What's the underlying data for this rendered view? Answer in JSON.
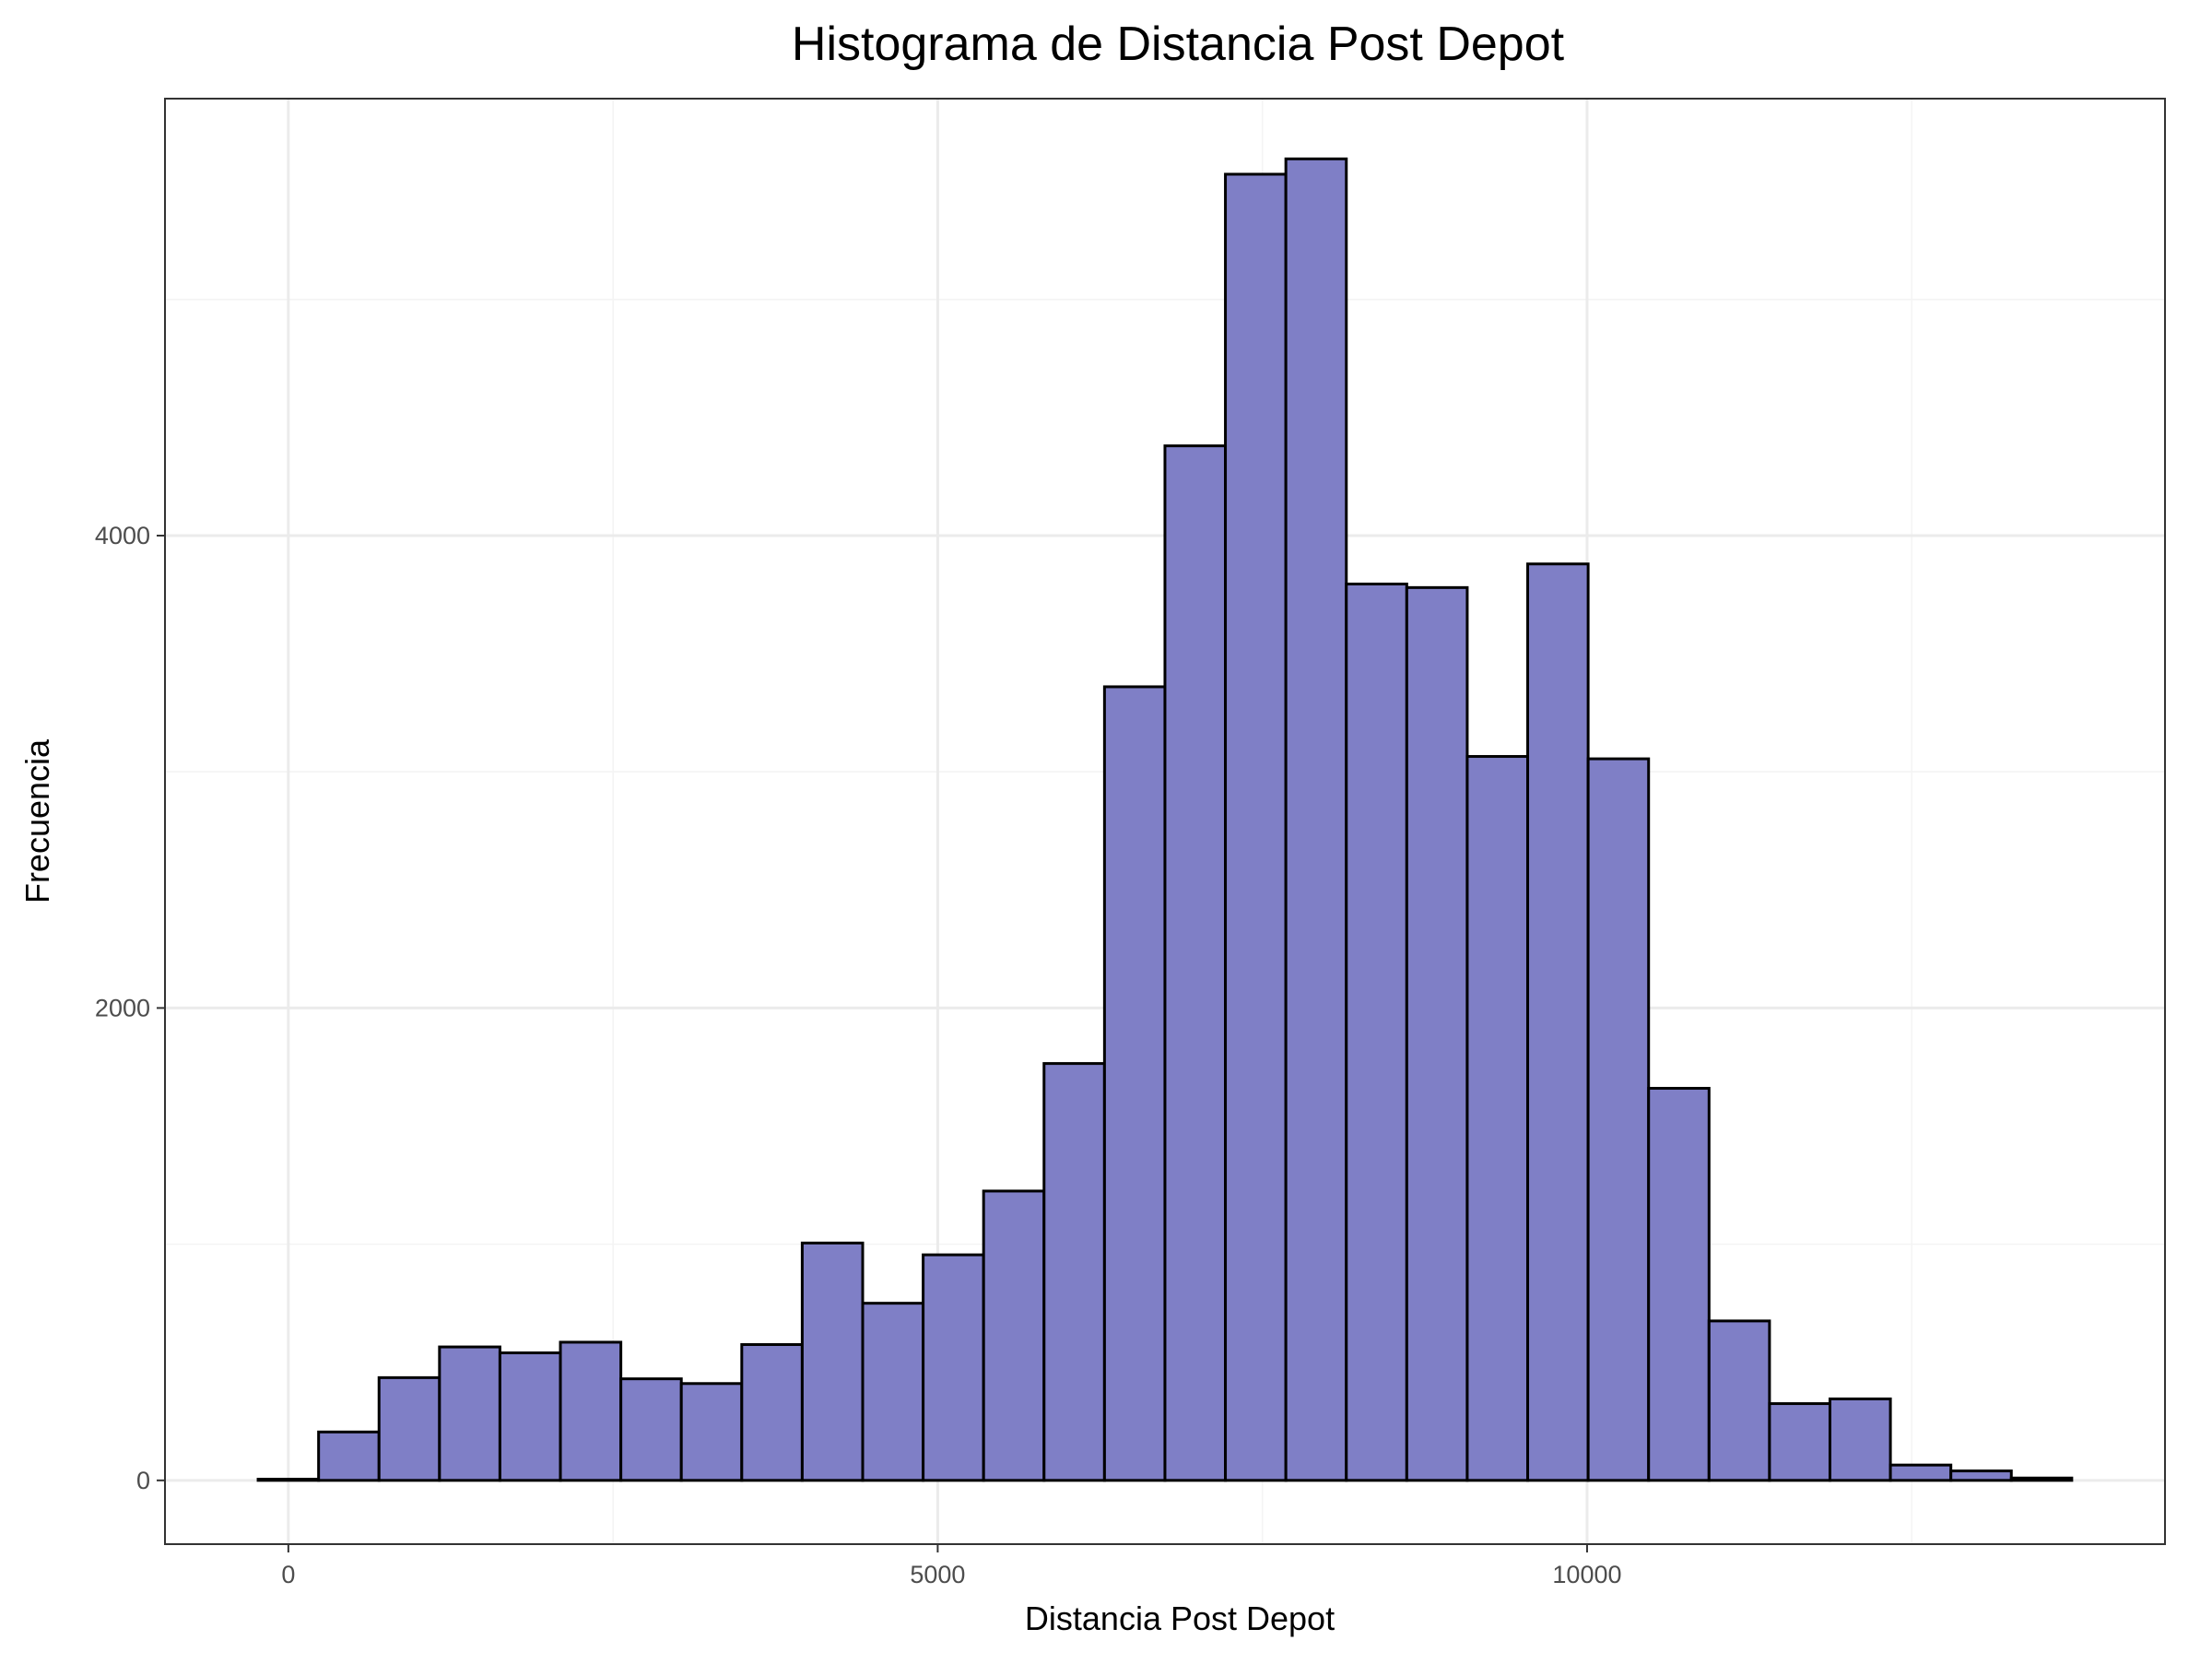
{
  "chart_data": {
    "type": "bar",
    "title": "Histograma de Distancia Post Depot",
    "xlabel": "Distancia Post Depot",
    "ylabel": "Frecuencia",
    "x_ticks": [
      "0",
      "5000",
      "10000"
    ],
    "y_ticks": [
      "0",
      "2000",
      "4000"
    ],
    "xlim": [
      -950,
      14450
    ],
    "ylim": [
      -270,
      5850
    ],
    "grid": true,
    "bin_width": 465.5,
    "bin_centers": [
      0,
      465.5,
      931,
      1396.5,
      1862,
      2327.5,
      2793,
      3258.5,
      3724,
      4189.5,
      4655,
      5120.5,
      5586,
      6051.5,
      6517,
      6982.5,
      7448,
      7913.5,
      8379,
      8844.5,
      9310,
      9775.5,
      10241,
      10706.5,
      11172,
      11637.5,
      12103,
      12568.5,
      13034,
      13499.5
    ],
    "values": [
      5,
      205,
      435,
      565,
      540,
      585,
      430,
      410,
      575,
      1005,
      750,
      955,
      1225,
      1765,
      3360,
      4380,
      5530,
      5595,
      3795,
      3780,
      3065,
      3880,
      3055,
      1660,
      675,
      325,
      345,
      65,
      40,
      10
    ],
    "colors": {
      "bar_fill": "#7f7fc6",
      "bar_stroke": "#000000",
      "grid_major": "#ebebeb",
      "grid_minor": "#f4f4f4",
      "panel_border": "#333333"
    }
  }
}
